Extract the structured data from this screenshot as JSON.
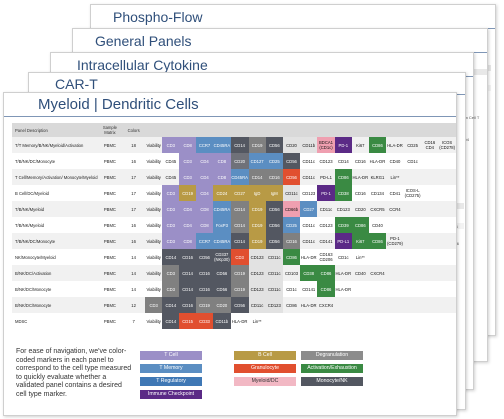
{
  "sheets": {
    "phospho_flow": "Phospho-Flow",
    "general_panels": "General Panels",
    "intracellular_cytokine": "Intracellular Cytokine",
    "car_t": "CAR-T",
    "myeloid_dendritic": "Myeloid | Dendritic Cells"
  },
  "side_notes": {
    "custom_cell": "Custom\nCell T",
    "cd4": "CD4",
    "cd6": "CD6",
    "ccr6": "CCR6"
  },
  "table": {
    "headers": [
      "Panel Description",
      "Sample Matrix",
      "Colors"
    ],
    "rows": [
      {
        "desc": "T/T Memory/B/NK/Myeloid/Activation",
        "matrix": "PBMC",
        "colors": "18",
        "markers": [
          "Viability",
          "CD3",
          "CD8",
          "CCR7",
          "CD45RA",
          "CD14",
          "CD19",
          "CD56",
          "CD20",
          "CD11b",
          "BDCA1 (CD1c)",
          "PD-1",
          "Ki67",
          "CD86",
          "HLA-DR",
          "CD25",
          "CD16 CD4",
          "ICOS (CD278)"
        ],
        "colors_list": [
          "#ffffff",
          "#9b8fc7",
          "#9b8fc7",
          "#5b8ec2",
          "#5b8ec2",
          "#535761",
          "#808080",
          "#535761",
          "#e2e2e2",
          "#e2e2e2",
          "#ef9fb0",
          "#5b2a86",
          "#ffffff",
          "#3a8a43",
          "#ffffff",
          "#ffffff",
          "#ffffff",
          "#ffffff"
        ]
      },
      {
        "desc": "T/B/NK/DC/Monocyte",
        "matrix": "PBMC",
        "colors": "16",
        "markers": [
          "Viability",
          "CD45",
          "CD3",
          "CD4",
          "CD8",
          "CD20",
          "CD127",
          "CD25",
          "CD56",
          "CD11c",
          "CD123",
          "CD14",
          "CD16",
          "HLA-DR",
          "CD40",
          "CD1c"
        ],
        "colors_list": [
          "#ffffff",
          "#ffffff",
          "#9b8fc7",
          "#9b8fc7",
          "#9b8fc7",
          "#6f7179",
          "#5b8ec2",
          "#5b8ec2",
          "#535761",
          "#ffffff",
          "#ffffff",
          "#ffffff",
          "#ffffff",
          "#ffffff",
          "#ffffff",
          "#ffffff"
        ]
      },
      {
        "desc": "T Cell/Memory/Activation/ Monocyte/Myeloid",
        "matrix": "PBMC",
        "colors": "17",
        "markers": [
          "Viability",
          "CD45",
          "CD3",
          "CD4",
          "CD8",
          "CD45RA",
          "CD14",
          "CD16",
          "CD56",
          "CD11c",
          "PD-L1",
          "CD86",
          "HLA-DR",
          "KLRG1",
          "Lin**",
          "",
          ""
        ],
        "colors_list": [
          "#ffffff",
          "#ffffff",
          "#9b8fc7",
          "#9b8fc7",
          "#9b8fc7",
          "#5b8ec2",
          "#808080",
          "#808080",
          "#e14f2f",
          "#ffffff",
          "#ffffff",
          "#3a8a43",
          "#ffffff",
          "#ffffff",
          "#ffffff",
          "#ffffff",
          "#ffffff"
        ]
      },
      {
        "desc": "B Cell/DC/Myeloid",
        "matrix": "PBMC",
        "colors": "17",
        "markers": [
          "Viability",
          "CD3",
          "CD19",
          "CD4",
          "CD24",
          "CD27",
          "IgD",
          "IgM",
          "CD11c",
          "CD123",
          "PD-1",
          "CD38",
          "CD16",
          "CD134",
          "CD41",
          "ICOS-L (CD275)",
          ""
        ],
        "colors_list": [
          "#ffffff",
          "#9b8fc7",
          "#b89a45",
          "#9b8fc7",
          "#b89a45",
          "#b89a45",
          "#b89a45",
          "#b89a45",
          "#e2e2e2",
          "#ffffff",
          "#5b2a86",
          "#3a8a43",
          "#ffffff",
          "#ffffff",
          "#ffffff",
          "#ffffff",
          "#ffffff"
        ]
      },
      {
        "desc": "T/B/NK/Myeloid",
        "matrix": "PBMC",
        "colors": "17",
        "markers": [
          "Viability",
          "CD3",
          "CD4",
          "CD8",
          "CD45RA",
          "CD14",
          "CD19",
          "CD56",
          "CD66b",
          "CD27",
          "CD11c",
          "CD123",
          "CD20",
          "CXCR5",
          "CCR4",
          "",
          ""
        ],
        "colors_list": [
          "#ffffff",
          "#9b8fc7",
          "#9b8fc7",
          "#9b8fc7",
          "#5b8ec2",
          "#808080",
          "#b89a45",
          "#535761",
          "#ef9fb0",
          "#5b8ec2",
          "#ffffff",
          "#ffffff",
          "#ffffff",
          "#ffffff",
          "#ffffff",
          "#ffffff",
          "#ffffff"
        ]
      },
      {
        "desc": "T/B/NK/Myeloid",
        "matrix": "PBMC",
        "colors": "16",
        "markers": [
          "Viability",
          "CD3",
          "CD4",
          "CD8",
          "FoxP3",
          "CD14",
          "CD19",
          "CD56",
          "CD25",
          "CD11c",
          "CD123",
          "CD39",
          "CD86",
          "CD40",
          "",
          ""
        ],
        "colors_list": [
          "#ffffff",
          "#9b8fc7",
          "#9b8fc7",
          "#9b8fc7",
          "#5b8ec2",
          "#808080",
          "#b89a45",
          "#535761",
          "#5b8ec2",
          "#ffffff",
          "#ffffff",
          "#3a8a43",
          "#3a8a43",
          "#ffffff",
          "#ffffff",
          "#ffffff"
        ]
      },
      {
        "desc": "T/B/NK/DC/Monocyte",
        "matrix": "PBMC",
        "colors": "16",
        "markers": [
          "Viability",
          "CD3",
          "CD8",
          "CCR7",
          "CD45RA",
          "CD14",
          "CD19",
          "CD56",
          "CD16",
          "CD11c",
          "CD141",
          "PD-L1",
          "Ki67",
          "CD86",
          "PD-1 (CD279)",
          ""
        ],
        "colors_list": [
          "#ffffff",
          "#9b8fc7",
          "#9b8fc7",
          "#5b8ec2",
          "#5b8ec2",
          "#535761",
          "#b89a45",
          "#535761",
          "#808080",
          "#ffffff",
          "#ffffff",
          "#5b2a86",
          "#3a8a43",
          "#3a8a43",
          "#ffffff",
          "#ffffff"
        ]
      },
      {
        "desc": "NK/Monocyte/Myeloid",
        "matrix": "PBMC",
        "colors": "14",
        "markers": [
          "Viability",
          "CD14",
          "CD16",
          "CD56",
          "CD337 (NKp30)",
          "CD3",
          "CD123",
          "CD11c",
          "CD86",
          "HLA-DR",
          "CD163 CD206",
          "CD1c",
          "Lin**",
          ""
        ],
        "colors_list": [
          "#ffffff",
          "#535761",
          "#535761",
          "#535761",
          "#535761",
          "#e14f2f",
          "#e2e2e2",
          "#e2e2e2",
          "#3a8a43",
          "#ffffff",
          "#ffffff",
          "#ffffff",
          "#ffffff",
          "#ffffff"
        ]
      },
      {
        "desc": "B/NK/DC/Activation",
        "matrix": "PBMC",
        "colors": "14",
        "markers": [
          "Viability",
          "CD3",
          "CD14",
          "CD16",
          "CD56",
          "CD19",
          "CD123",
          "CD11c",
          "CD103",
          "CD38",
          "CD86",
          "HLA-DR",
          "CD40",
          "CXCR4"
        ],
        "colors_list": [
          "#ffffff",
          "#808080",
          "#535761",
          "#535761",
          "#535761",
          "#808080",
          "#e2e2e2",
          "#e2e2e2",
          "#ffffff",
          "#3a8a43",
          "#3a8a43",
          "#ffffff",
          "#ffffff",
          "#ffffff"
        ]
      },
      {
        "desc": "B/NK/DC/Monocyte",
        "matrix": "PBMC",
        "colors": "14",
        "markers": [
          "Viability",
          "CD3",
          "CD14",
          "CD16",
          "CD56",
          "CD19",
          "CD123",
          "CD11c",
          "CD1c",
          "CD141",
          "CD86",
          "HLA-DR",
          "",
          ""
        ],
        "colors_list": [
          "#ffffff",
          "#808080",
          "#535761",
          "#535761",
          "#535761",
          "#808080",
          "#e2e2e2",
          "#e2e2e2",
          "#ffffff",
          "#ffffff",
          "#3a8a43",
          "#ffffff",
          "#ffffff",
          "#ffffff"
        ]
      },
      {
        "desc": "B/NK/DC/Monocyte",
        "matrix": "PBMC",
        "colors": "12",
        "markers": [
          "CD3",
          "CD14",
          "CD16",
          "CD19",
          "CD20",
          "CD56",
          "CD11c",
          "CD123",
          "CD86",
          "HLA-DR",
          "CXCR4",
          ""
        ],
        "colors_list": [
          "#808080",
          "#535761",
          "#535761",
          "#808080",
          "#808080",
          "#535761",
          "#e2e2e2",
          "#e2e2e2",
          "#ffffff",
          "#ffffff",
          "#ffffff",
          "#ffffff"
        ]
      },
      {
        "desc": "MDSC",
        "matrix": "PBMC",
        "colors": "7",
        "markers": [
          "Viability",
          "CD14",
          "CD15",
          "CD33",
          "CD11b",
          "HLA-DR",
          "Lin**"
        ],
        "colors_list": [
          "#ffffff",
          "#535761",
          "#e14f2f",
          "#e14f2f",
          "#535761",
          "#ffffff",
          "#ffffff"
        ]
      }
    ]
  },
  "legend": {
    "text": "For ease of navigation, we've color-coded markers in each panel to correspond to the cell type measured to quickly evaluate whether a validated panel contains a desired cell type marker.",
    "items": [
      {
        "label": "T Cell",
        "color": "#9b8fc7",
        "text_color": "#ffffff"
      },
      {
        "label": "B Cell",
        "color": "#b89a45",
        "text_color": "#ffffff"
      },
      {
        "label": "Degranulation",
        "color": "#8c8c8c",
        "text_color": "#ffffff"
      },
      {
        "label": "T Memory",
        "color": "#5b8ec2",
        "text_color": "#ffffff"
      },
      {
        "label": "Granulocyte",
        "color": "#e14f2f",
        "text_color": "#ffffff"
      },
      {
        "label": "Activation/Exhaustion",
        "color": "#3a8a43",
        "text_color": "#ffffff"
      },
      {
        "label": "T Regulatory",
        "color": "#3f78b5",
        "text_color": "#ffffff"
      },
      {
        "label": "Myeloid/DC",
        "color": "#f2b8c4",
        "text_color": "#333333"
      },
      {
        "label": "Monocyte/NK",
        "color": "#535761",
        "text_color": "#ffffff"
      },
      {
        "label": "Immune Checkpoint",
        "color": "#5b2a86",
        "text_color": "#ffffff"
      }
    ]
  }
}
